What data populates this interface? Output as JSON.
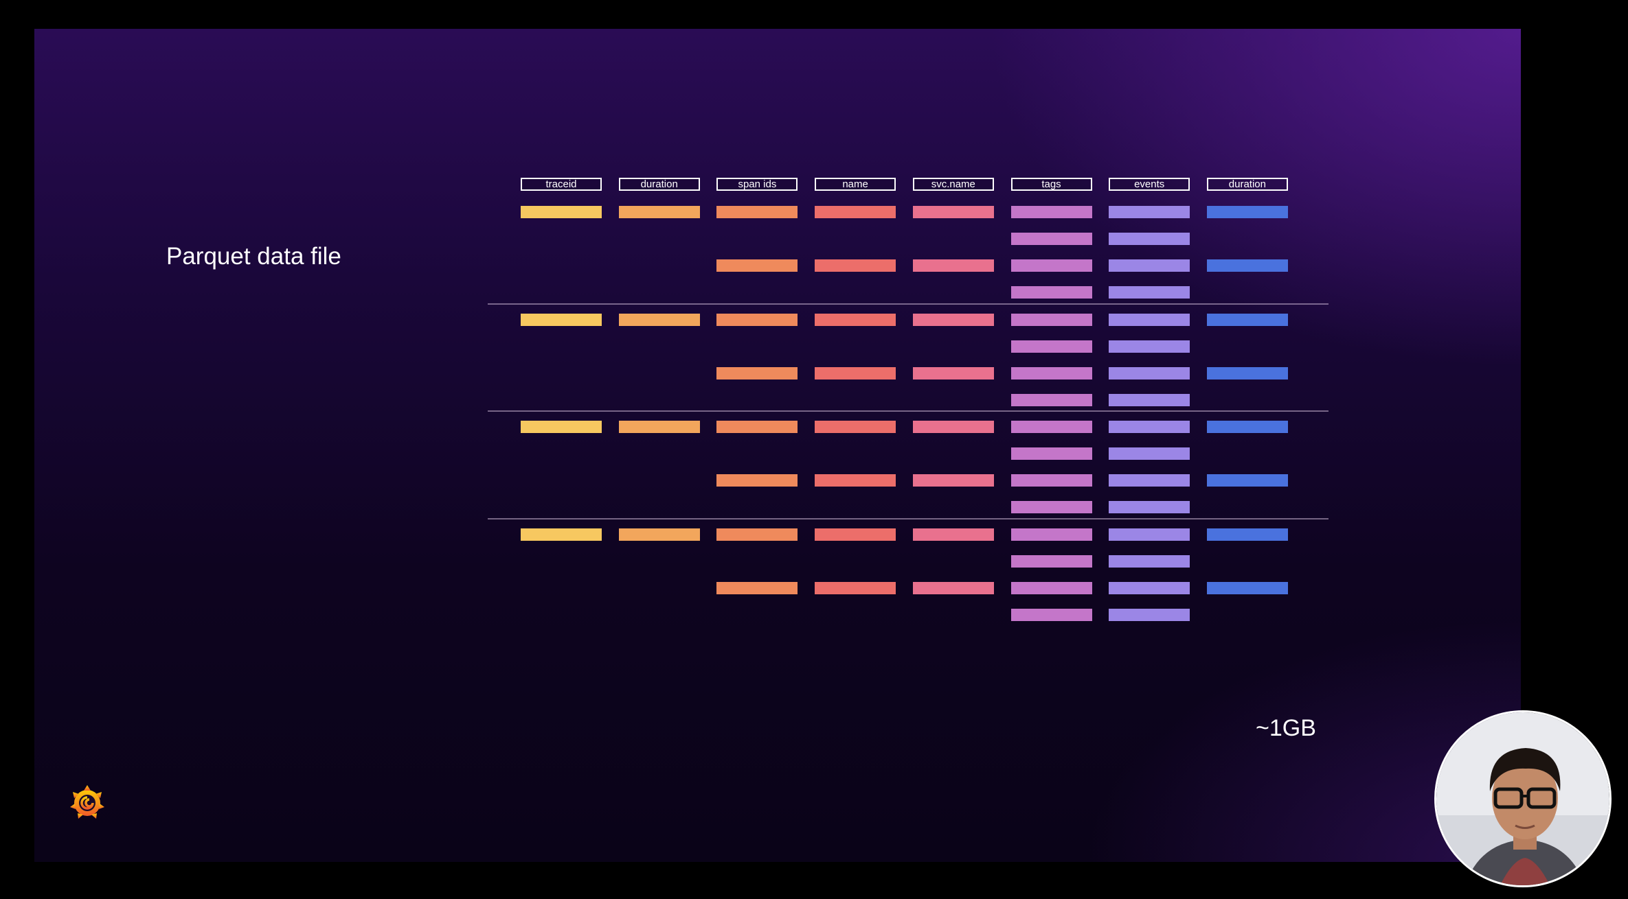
{
  "slide": {
    "title": "Parquet data file",
    "size_label": "~1GB"
  },
  "columns": [
    {
      "label": "traceid",
      "color": "#f7c860"
    },
    {
      "label": "duration",
      "color": "#f2a65c"
    },
    {
      "label": "span ids",
      "color": "#ef8a5c"
    },
    {
      "label": "name",
      "color": "#ec6e6a"
    },
    {
      "label": "svc.name",
      "color": "#e9718e"
    },
    {
      "label": "tags",
      "color": "#c476c9"
    },
    {
      "label": "events",
      "color": "#9b86e6"
    },
    {
      "label": "duration",
      "color": "#4a72de"
    }
  ],
  "row_groups": 4,
  "row_pattern": [
    [
      true,
      true,
      true,
      true,
      true,
      true,
      true,
      true
    ],
    [
      false,
      false,
      false,
      false,
      false,
      true,
      true,
      false
    ],
    [
      false,
      false,
      true,
      true,
      true,
      true,
      true,
      true
    ],
    [
      false,
      false,
      false,
      false,
      false,
      true,
      true,
      false
    ]
  ],
  "logo_icon": "grafana-logo-icon",
  "presenter_icon": "presenter-webcam-icon"
}
